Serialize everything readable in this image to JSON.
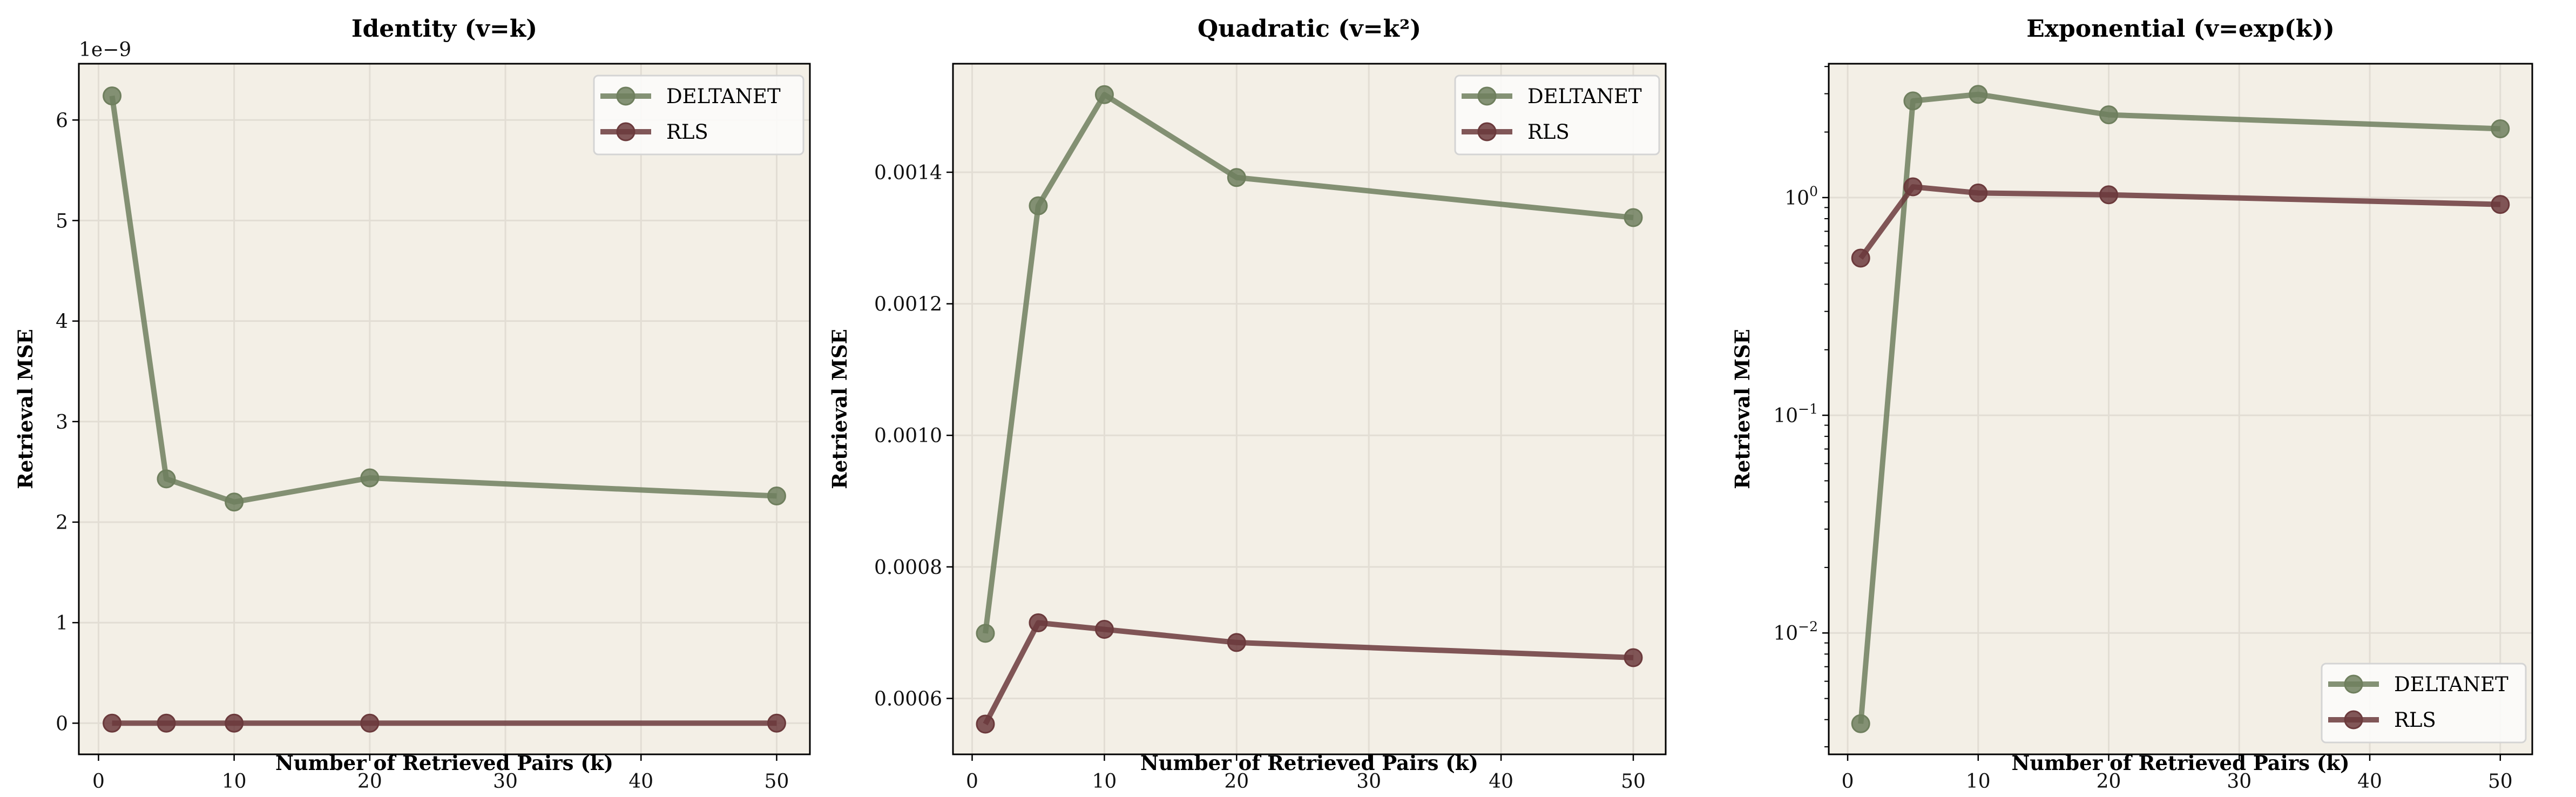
{
  "colors": {
    "background": "#ffffff",
    "axes_face": "#f3efe6",
    "grid": "#e2ddd4",
    "DELTANET": "#6f7f5e",
    "RLS": "#6b3a3c",
    "legend_face": "#fcfbf9",
    "legend_edge": "#d4d4d4"
  },
  "chart_data": [
    {
      "type": "line",
      "title": "Identity (v=k)",
      "xlabel": "Number of Retrieved Pairs (k)",
      "ylabel": "Retrieval MSE",
      "y_offset_label": "1e−9",
      "yscale": "linear",
      "x": [
        1,
        5,
        10,
        20,
        50
      ],
      "xlim": [
        -1.45,
        52.45
      ],
      "ylim": [
        -0.31,
        6.56
      ],
      "xticks": [
        0,
        10,
        20,
        30,
        40,
        50
      ],
      "xtick_labels": [
        "0",
        "10",
        "20",
        "30",
        "40",
        "50"
      ],
      "yticks": [
        0,
        1,
        2,
        3,
        4,
        5,
        6
      ],
      "ytick_labels": [
        "0",
        "1",
        "2",
        "3",
        "4",
        "5",
        "6"
      ],
      "grid": true,
      "legend": "top-right",
      "series": [
        {
          "name": "DELTANET",
          "values": [
            6.24,
            2.43,
            2.2,
            2.44,
            2.26
          ]
        },
        {
          "name": "RLS",
          "values": [
            0,
            0,
            0,
            0,
            0
          ]
        }
      ]
    },
    {
      "type": "line",
      "title": "Quadratic (v=k²)",
      "xlabel": "Number of Retrieved Pairs (k)",
      "ylabel": "Retrieval MSE",
      "yscale": "linear",
      "x": [
        1,
        5,
        10,
        20,
        50
      ],
      "xlim": [
        -1.45,
        52.45
      ],
      "ylim": [
        0.000515,
        0.001565
      ],
      "xticks": [
        0,
        10,
        20,
        30,
        40,
        50
      ],
      "xtick_labels": [
        "0",
        "10",
        "20",
        "30",
        "40",
        "50"
      ],
      "yticks": [
        0.0006,
        0.0008,
        0.001,
        0.0012,
        0.0014
      ],
      "ytick_labels": [
        "0.0006",
        "0.0008",
        "0.0010",
        "0.0012",
        "0.0014"
      ],
      "grid": true,
      "legend": "top-right",
      "series": [
        {
          "name": "DELTANET",
          "values": [
            0.000699,
            0.001349,
            0.001518,
            0.001392,
            0.001331
          ]
        },
        {
          "name": "RLS",
          "values": [
            0.000561,
            0.000715,
            0.000705,
            0.000685,
            0.000662
          ]
        }
      ]
    },
    {
      "type": "line",
      "title": "Exponential (v=exp(k))",
      "xlabel": "Number of Retrieved Pairs (k)",
      "ylabel": "Retrieval MSE",
      "yscale": "log",
      "x": [
        1,
        5,
        10,
        20,
        50
      ],
      "xlim": [
        -1.45,
        52.45
      ],
      "ylim": [
        0.00277,
        4.12
      ],
      "xticks": [
        0,
        10,
        20,
        30,
        40,
        50
      ],
      "xtick_labels": [
        "0",
        "10",
        "20",
        "30",
        "40",
        "50"
      ],
      "yticks": [
        0.01,
        0.1,
        1
      ],
      "ytick_labels": [
        [
          "10",
          "−2"
        ],
        [
          "10",
          "−1"
        ],
        [
          "10",
          "0"
        ]
      ],
      "grid": true,
      "legend": "bottom-right",
      "series": [
        {
          "name": "DELTANET",
          "values": [
            0.00383,
            2.78,
            2.98,
            2.4,
            2.07
          ]
        },
        {
          "name": "RLS",
          "values": [
            0.527,
            1.12,
            1.05,
            1.03,
            0.93
          ]
        }
      ]
    }
  ]
}
